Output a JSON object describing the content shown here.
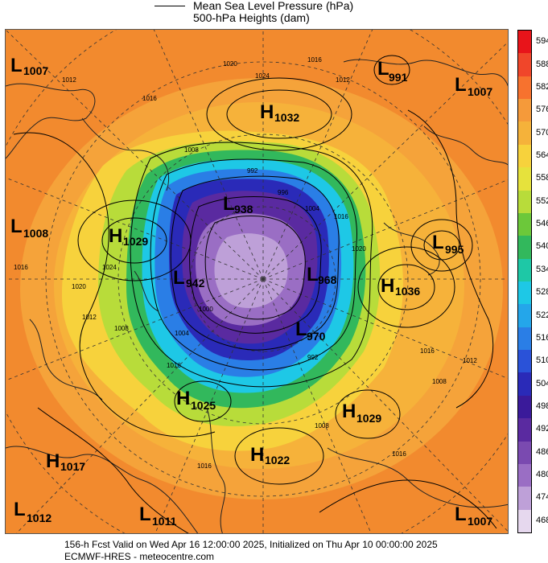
{
  "legend": {
    "mslp_label": "Mean Sea Level Pressure (hPa)",
    "heights_label": "500-hPa Heights (dam)"
  },
  "colorbar": {
    "ticks": [
      "594",
      "588",
      "582",
      "576",
      "570",
      "564",
      "558",
      "552",
      "546",
      "540",
      "534",
      "528",
      "522",
      "516",
      "510",
      "504",
      "498",
      "492",
      "486",
      "480",
      "474",
      "468"
    ],
    "colors": [
      "#e8141a",
      "#f0462a",
      "#f7722e",
      "#f59a3a",
      "#f5b23a",
      "#f7d23c",
      "#e6e23c",
      "#b8dc3a",
      "#6cc83a",
      "#32b85c",
      "#1ec8a6",
      "#1ec8e6",
      "#24a6ea",
      "#2a7ee6",
      "#2a52d8",
      "#2a2ab8",
      "#3a1a9a",
      "#5a2aa0",
      "#7a4ab0",
      "#9a6ec4",
      "#bea0d8",
      "#e6d8ee"
    ]
  },
  "centers": [
    {
      "type": "L",
      "value": "1007"
    },
    {
      "type": "H",
      "value": "1032"
    },
    {
      "type": "L",
      "value": "991"
    },
    {
      "type": "L",
      "value": "1007"
    },
    {
      "type": "L",
      "value": "1008"
    },
    {
      "type": "H",
      "value": "1029"
    },
    {
      "type": "L",
      "value": "938"
    },
    {
      "type": "L",
      "value": "995"
    },
    {
      "type": "L",
      "value": "942"
    },
    {
      "type": "L",
      "value": "968"
    },
    {
      "type": "H",
      "value": "1036"
    },
    {
      "type": "L",
      "value": "970"
    },
    {
      "type": "H",
      "value": "1025"
    },
    {
      "type": "H",
      "value": "1029"
    },
    {
      "type": "H",
      "value": "1017"
    },
    {
      "type": "H",
      "value": "1022"
    },
    {
      "type": "L",
      "value": "1012"
    },
    {
      "type": "L",
      "value": "1011"
    },
    {
      "type": "L",
      "value": "1007"
    }
  ],
  "isobar_labels": [
    "1012",
    "1016",
    "1020",
    "1024",
    "1016",
    "1012",
    "1008",
    "992",
    "996",
    "1004",
    "1016",
    "1020",
    "1024",
    "1016",
    "1020",
    "1012",
    "1008",
    "1004",
    "1000",
    "992",
    "1016",
    "1012",
    "1008",
    "1016",
    "1008",
    "1016",
    "1016"
  ],
  "footer": {
    "line1": "156-h Fcst Valid on Wed Apr 16 12:00:00 2025, Initialized on Thu Apr 10 00:00:00 2025",
    "line2": "ECMWF-HRES  - meteocentre.com"
  }
}
